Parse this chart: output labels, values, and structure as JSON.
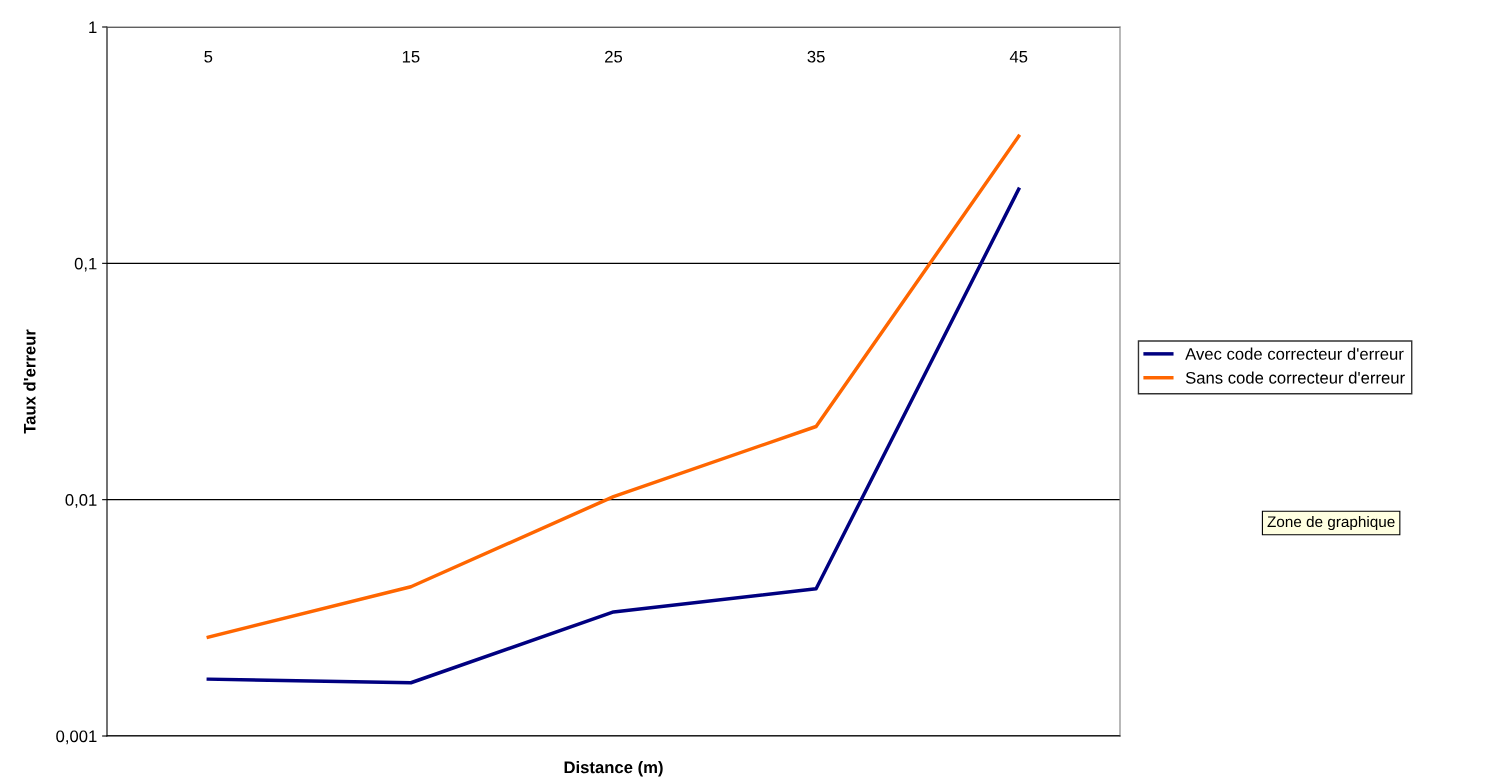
{
  "chart_data": {
    "type": "line",
    "xlabel": "Distance (m)",
    "ylabel": "Taux d'erreur",
    "categories": [
      "5",
      "15",
      "25",
      "35",
      "45"
    ],
    "series": [
      {
        "name": "Avec code correcteur d'erreur",
        "color": "#000080",
        "values": [
          0.00174,
          0.00168,
          0.00335,
          0.0042,
          0.206
        ]
      },
      {
        "name": "Sans code correcteur d'erreur",
        "color": "#ff6600",
        "values": [
          0.00262,
          0.00428,
          0.0103,
          0.0204,
          0.345
        ]
      }
    ],
    "log": "y",
    "ylim": [
      0.001,
      1
    ],
    "yticks": [
      {
        "value": 0.001,
        "label": "0,001"
      },
      {
        "value": 0.01,
        "label": "0,01"
      },
      {
        "value": 0.1,
        "label": "0,1"
      },
      {
        "value": 1,
        "label": "1"
      }
    ],
    "grid": "y",
    "legend": "right",
    "marker": "none",
    "line_style": "solid",
    "annotations": [
      "Zone de graphique"
    ]
  }
}
